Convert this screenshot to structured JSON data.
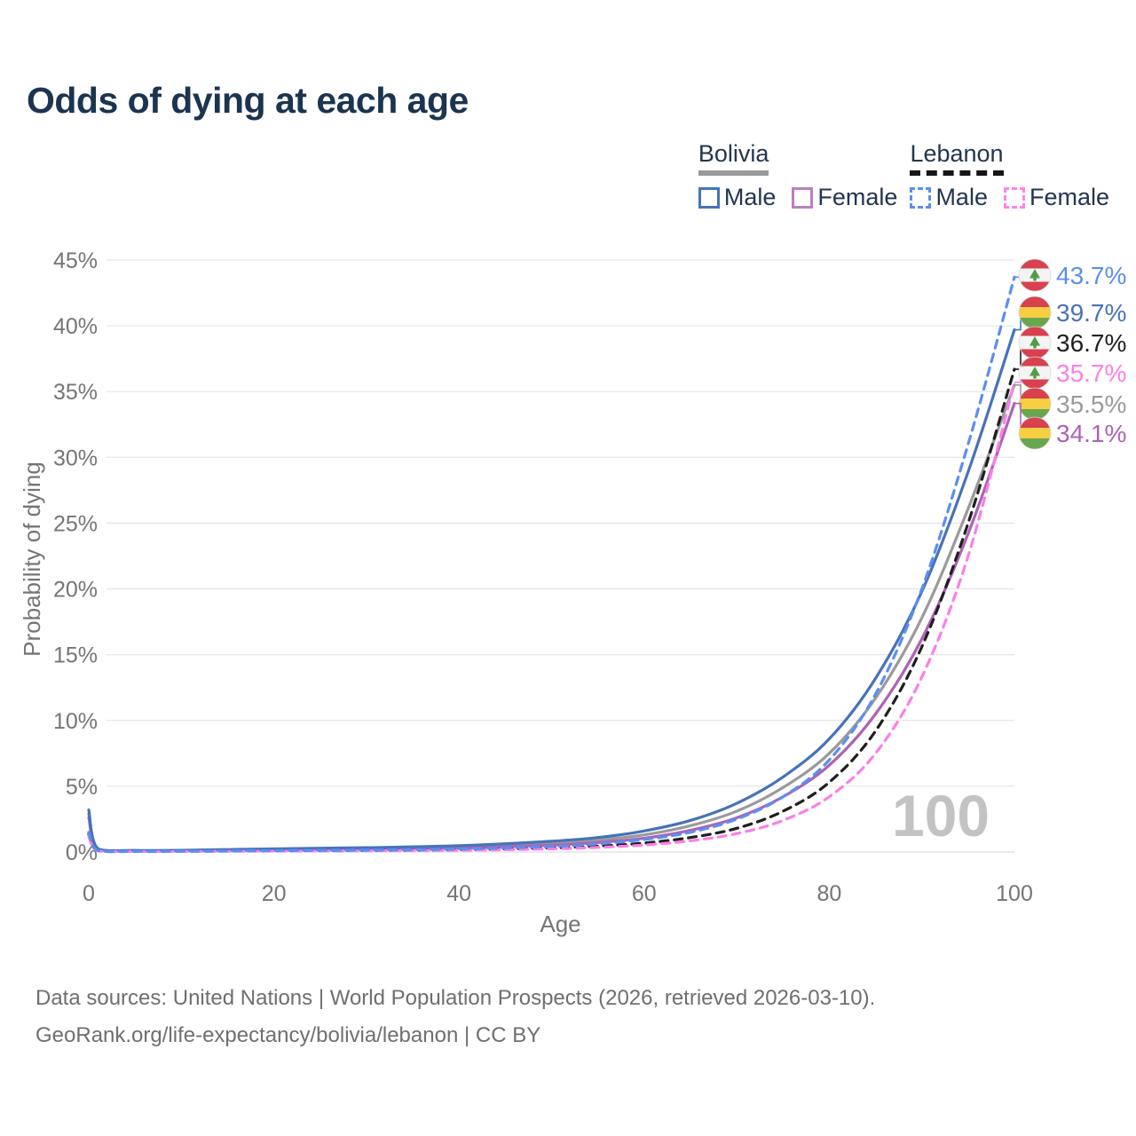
{
  "title": "Odds of dying at each age",
  "legend": {
    "groups": [
      {
        "label": "Bolivia",
        "underline_style": "solid",
        "underline_color": "#9a9a9a",
        "items": [
          {
            "label": "Male",
            "color": "#4673b8",
            "dashed": false
          },
          {
            "label": "Female",
            "color": "#bb7ec0",
            "dashed": false
          }
        ]
      },
      {
        "label": "Lebanon",
        "underline_style": "dashed",
        "underline_color": "#161616",
        "items": [
          {
            "label": "Male",
            "color": "#5b8ff0",
            "dashed": true
          },
          {
            "label": "Female",
            "color": "#fb85e8",
            "dashed": true
          }
        ]
      }
    ]
  },
  "chart_data": {
    "type": "line",
    "title": "Odds of dying at each age",
    "xlabel": "Age",
    "ylabel": "Probability of dying",
    "xlim": [
      0,
      100
    ],
    "ylim": [
      0,
      45
    ],
    "x_ticks": [
      0,
      20,
      40,
      60,
      80,
      100
    ],
    "y_ticks_percent": [
      0,
      5,
      10,
      15,
      20,
      25,
      30,
      35,
      40,
      45
    ],
    "grid": "horizontal",
    "legend_position": "top-right",
    "ages": [
      0,
      1,
      5,
      10,
      20,
      30,
      40,
      50,
      55,
      60,
      65,
      70,
      75,
      80,
      85,
      90,
      95,
      100
    ],
    "series": [
      {
        "name": "Bolivia (both sexes)",
        "country": "bolivia",
        "sex": "all",
        "color": "#9a9a9a",
        "dashed": false,
        "values": [
          2.9,
          0.22,
          0.1,
          0.11,
          0.19,
          0.26,
          0.38,
          0.66,
          0.9,
          1.3,
          2.0,
          3.1,
          4.9,
          7.5,
          11.7,
          17.8,
          26.1,
          35.5
        ],
        "end_label": "35.5%"
      },
      {
        "name": "Bolivia Female",
        "country": "bolivia",
        "sex": "female",
        "color": "#ad62b5",
        "dashed": false,
        "values": [
          2.6,
          0.19,
          0.09,
          0.09,
          0.14,
          0.2,
          0.3,
          0.52,
          0.72,
          1.05,
          1.65,
          2.6,
          4.2,
          6.6,
          10.5,
          16.2,
          24.2,
          34.1
        ],
        "end_label": "34.1%"
      },
      {
        "name": "Bolivia Male",
        "country": "bolivia",
        "sex": "male",
        "color": "#4673b8",
        "dashed": false,
        "values": [
          3.2,
          0.25,
          0.12,
          0.13,
          0.24,
          0.33,
          0.48,
          0.82,
          1.1,
          1.6,
          2.4,
          3.7,
          5.7,
          8.6,
          13.2,
          19.8,
          28.9,
          39.7
        ],
        "end_label": "39.7%"
      },
      {
        "name": "Lebanon (both sexes)",
        "country": "lebanon",
        "sex": "all",
        "color": "#1f1f1f",
        "dashed": true,
        "values": [
          1.35,
          0.09,
          0.04,
          0.05,
          0.09,
          0.11,
          0.17,
          0.31,
          0.45,
          0.68,
          1.1,
          1.8,
          3.1,
          5.3,
          9.2,
          15.6,
          25.0,
          36.7
        ],
        "end_label": "36.7%"
      },
      {
        "name": "Lebanon Female",
        "country": "lebanon",
        "sex": "female",
        "color": "#fb7fe7",
        "dashed": true,
        "values": [
          1.2,
          0.08,
          0.04,
          0.04,
          0.07,
          0.09,
          0.13,
          0.24,
          0.35,
          0.53,
          0.85,
          1.4,
          2.4,
          4.2,
          7.5,
          13.3,
          22.5,
          35.7
        ],
        "end_label": "35.7%"
      },
      {
        "name": "Lebanon Male",
        "country": "lebanon",
        "sex": "male",
        "color": "#5b8ff0",
        "dashed": true,
        "values": [
          1.5,
          0.1,
          0.05,
          0.06,
          0.11,
          0.14,
          0.22,
          0.42,
          0.62,
          0.95,
          1.5,
          2.5,
          4.2,
          7.0,
          12.0,
          20.0,
          31.0,
          43.7
        ],
        "end_label": "43.7%"
      }
    ],
    "end_label_order_top_to_bottom": [
      "Lebanon Male",
      "Bolivia Male",
      "Lebanon (both sexes)",
      "Lebanon Female",
      "Bolivia (both sexes)",
      "Bolivia Female"
    ],
    "annotations": {
      "age_watermark": "100"
    }
  },
  "flag_colors": {
    "bolivia": {
      "red": "#d8414d",
      "yellow": "#f6cf45",
      "green": "#68a74f"
    },
    "lebanon": {
      "red": "#d8414d",
      "white": "#f4f4f4",
      "cedar": "#4f9e47"
    }
  },
  "style_colors": {
    "title": "#1b3450",
    "axis_text": "#757575",
    "gridline": "#e7e7e7",
    "watermark": "#c3c3c3",
    "footer_text": "#6f6f6f"
  },
  "footer": {
    "line1": "Data sources: United Nations | World Population Prospects (2026, retrieved 2026-03-10).",
    "line2": "GeoRank.org/life-expectancy/bolivia/lebanon | CC BY"
  }
}
